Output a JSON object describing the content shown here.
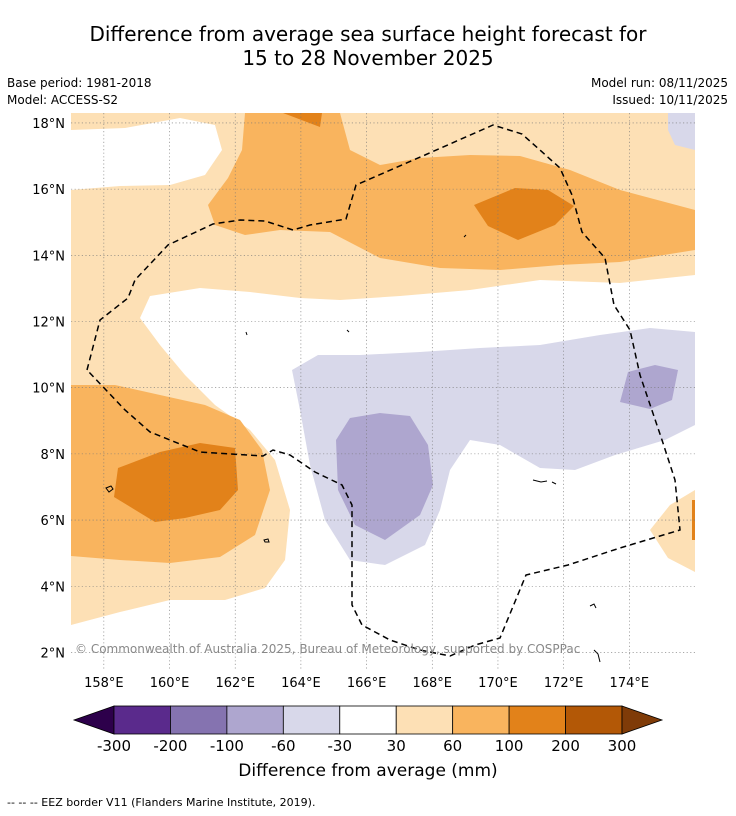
{
  "title_line1": "Difference from average sea surface height forecast for",
  "title_line2": "15 to 28 November 2025",
  "meta": {
    "base_period": "Base period: 1981-2018",
    "model": "Model: ACCESS-S2",
    "model_run": "Model run: 08/11/2025",
    "issued": "Issued: 10/11/2025"
  },
  "copyright": "© Commonwealth of Australia 2025, Bureau of Meteorology, supported by COSPPac",
  "eez_note": "--  --  -- EEZ border V11 (Flanders Marine Institute, 2019).",
  "chart_data": {
    "type": "heatmap",
    "title": "Difference from average sea surface height forecast for 15 to 28 November 2025",
    "x_ticks": [
      "158°E",
      "160°E",
      "162°E",
      "164°E",
      "166°E",
      "168°E",
      "170°E",
      "172°E",
      "174°E"
    ],
    "x_tick_values": [
      158,
      160,
      162,
      164,
      166,
      168,
      170,
      172,
      174
    ],
    "y_ticks": [
      "18°N",
      "16°N",
      "14°N",
      "12°N",
      "10°N",
      "8°N",
      "6°N",
      "4°N",
      "2°N"
    ],
    "y_tick_values": [
      18,
      16,
      14,
      12,
      10,
      8,
      6,
      4,
      2
    ],
    "xlim": [
      157,
      176
    ],
    "ylim": [
      1.5,
      18.3
    ],
    "colorbar": {
      "label": "Difference from average (mm)",
      "tick_labels": [
        "-300",
        "-200",
        "-100",
        "-60",
        "-30",
        "30",
        "60",
        "100",
        "200",
        "300"
      ],
      "bins": [
        {
          "range": "-300 to -200",
          "color": "#5a2a8c"
        },
        {
          "range": "-200 to -100",
          "color": "#8573b0"
        },
        {
          "range": "-100 to -60",
          "color": "#aea6cf"
        },
        {
          "range": "-60 to -30",
          "color": "#d8d8ea"
        },
        {
          "range": "-30 to 30",
          "color": "#ffffff"
        },
        {
          "range": "30 to 60",
          "color": "#fde0b5"
        },
        {
          "range": "60 to 100",
          "color": "#f9b45e"
        },
        {
          "range": "100 to 200",
          "color": "#e2821a"
        },
        {
          "range": "200 to 300",
          "color": "#b35806"
        }
      ],
      "extend_low_color": "#2d004b",
      "extend_high_color": "#7f3b08"
    }
  }
}
